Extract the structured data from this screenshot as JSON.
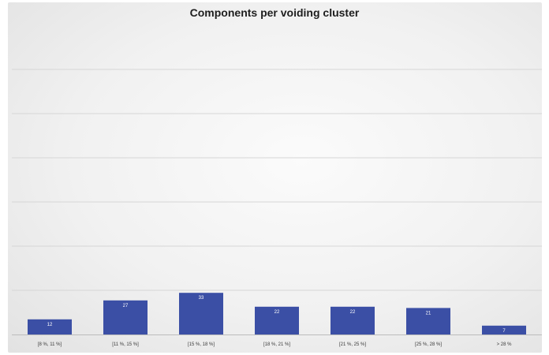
{
  "chart_data": {
    "type": "bar",
    "title": "Components per voiding cluster",
    "xlabel": "",
    "ylabel": "",
    "categories": [
      "[8 %, 11 %]",
      "[11 %, 15 %]",
      "[15 %, 18 %]",
      "[18 %, 21 %]",
      "[21 %, 25 %]",
      "[25 %, 28 %]",
      "> 28 %"
    ],
    "values": [
      12,
      27,
      33,
      22,
      22,
      21,
      7
    ],
    "ylim": [
      0,
      35
    ],
    "grid": true,
    "legend": "none",
    "colors": {
      "bar": "#3b4fa5",
      "grid": "#d6d6d6",
      "axis": "#bcbcbc"
    }
  }
}
